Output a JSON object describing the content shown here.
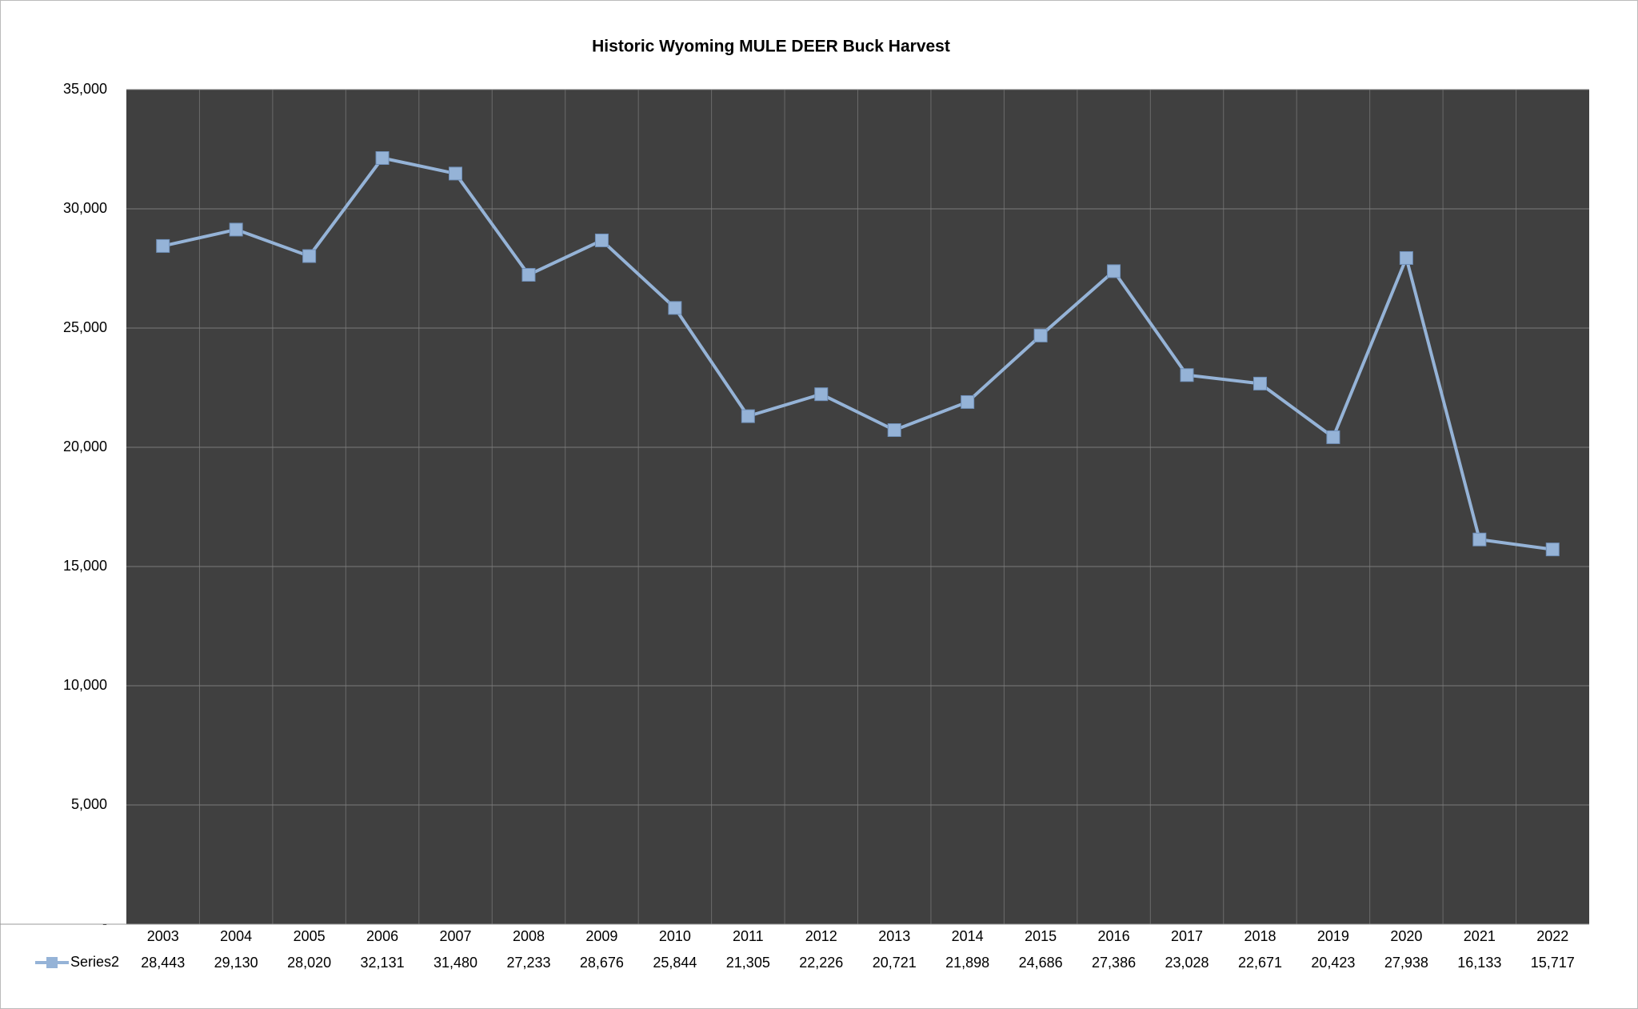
{
  "chart_data": {
    "type": "line",
    "title": "Historic Wyoming MULE DEER Buck Harvest",
    "categories": [
      "2003",
      "2004",
      "2005",
      "2006",
      "2007",
      "2008",
      "2009",
      "2010",
      "2011",
      "2012",
      "2013",
      "2014",
      "2015",
      "2016",
      "2017",
      "2018",
      "2019",
      "2020",
      "2021",
      "2022"
    ],
    "series": [
      {
        "name": "Series2",
        "color": "#95b3d7",
        "values": [
          28443,
          29130,
          28020,
          32131,
          31480,
          27233,
          28676,
          25844,
          21305,
          22226,
          20721,
          21898,
          24686,
          27386,
          23028,
          22671,
          20423,
          27938,
          16133,
          15717
        ],
        "value_labels": [
          "28,443",
          "29,130",
          "28,020",
          "32,131",
          "31,480",
          "27,233",
          "28,676",
          "25,844",
          "21,305",
          "22,226",
          "20,721",
          "21,898",
          "24,686",
          "27,386",
          "23,028",
          "22,671",
          "20,423",
          "27,938",
          "16,133",
          "15,717"
        ]
      }
    ],
    "ylim": [
      0,
      35000
    ],
    "yticks": [
      {
        "value": 0,
        "label": "-"
      },
      {
        "value": 5000,
        "label": "5,000"
      },
      {
        "value": 10000,
        "label": "10,000"
      },
      {
        "value": 15000,
        "label": "15,000"
      },
      {
        "value": 20000,
        "label": "20,000"
      },
      {
        "value": 25000,
        "label": "25,000"
      },
      {
        "value": 30000,
        "label": "30,000"
      },
      {
        "value": 35000,
        "label": "35,000"
      }
    ],
    "grid": true,
    "plot_background": "#404040"
  }
}
